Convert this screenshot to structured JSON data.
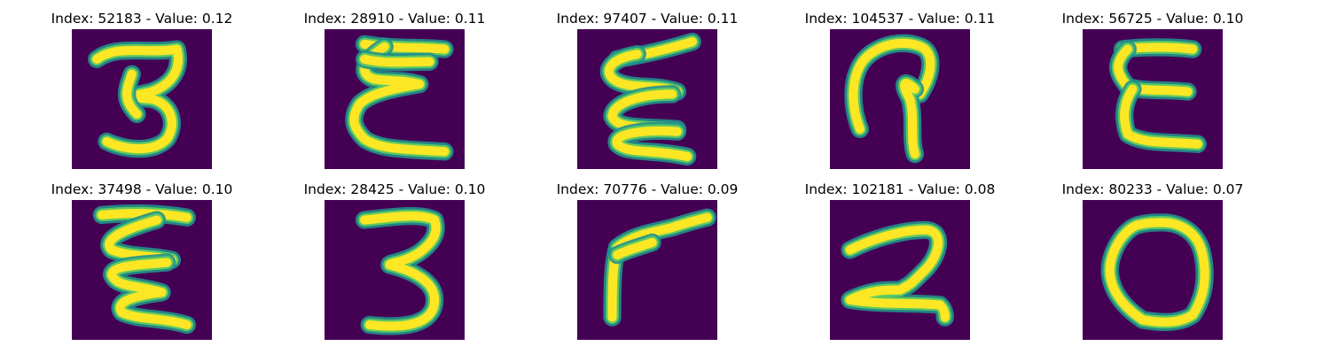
{
  "colors": {
    "background": "#440154",
    "stroke_edge": "#21918c",
    "stroke_mid": "#5ec962",
    "stroke_core": "#fde725"
  },
  "cells": [
    {
      "title": "Index: 52183 - Value: 0.12",
      "glyph": "3"
    },
    {
      "title": "Index: 28910 - Value: 0.11",
      "glyph": "epsilon-wavy"
    },
    {
      "title": "Index: 97407 - Value: 0.11",
      "glyph": "zigzag"
    },
    {
      "title": "Index: 104537 - Value: 0.11",
      "glyph": "hook"
    },
    {
      "title": "Index: 56725 - Value: 0.10",
      "glyph": "E"
    },
    {
      "title": "Index: 37498 - Value: 0.10",
      "glyph": "zigzag-wide"
    },
    {
      "title": "Index: 28425 - Value: 0.10",
      "glyph": "3-bold"
    },
    {
      "title": "Index: 70776 - Value: 0.09",
      "glyph": "angle"
    },
    {
      "title": "Index: 102181 - Value: 0.08",
      "glyph": "2"
    },
    {
      "title": "Index: 80233 - Value: 0.07",
      "glyph": "O"
    }
  ]
}
